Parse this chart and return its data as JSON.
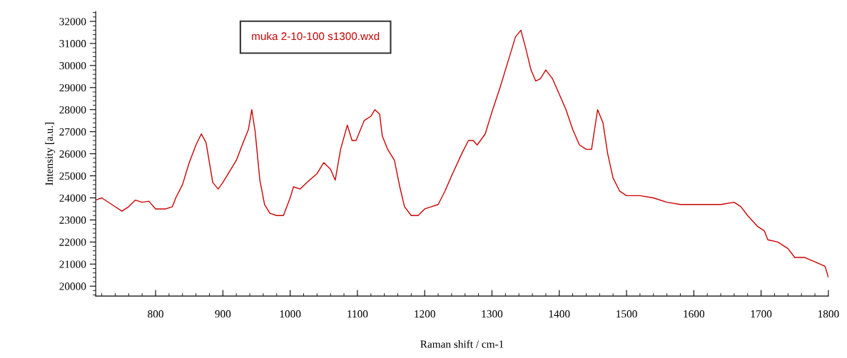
{
  "chart_data": {
    "type": "line",
    "xlabel": "Raman shift / cm-1",
    "ylabel": "Intensity [a.u.]",
    "xlim": [
      711,
      1800
    ],
    "ylim": [
      19550,
      32450
    ],
    "xticks": [
      800,
      900,
      1000,
      1100,
      1200,
      1300,
      1400,
      1500,
      1600,
      1700,
      1800,
      {
        "value": 720,
        "label": null
      },
      {
        "value": 740,
        "label": null
      },
      {
        "value": 760,
        "label": null
      },
      {
        "value": 780,
        "label": null
      },
      {
        "value": 820,
        "label": null
      },
      {
        "value": 840,
        "label": null
      },
      {
        "value": 860,
        "label": null
      },
      {
        "value": 880,
        "label": null
      },
      {
        "value": 920,
        "label": null
      },
      {
        "value": 940,
        "label": null
      },
      {
        "value": 960,
        "label": null
      },
      {
        "value": 980,
        "label": null
      },
      {
        "value": 1020,
        "label": null
      },
      {
        "value": 1040,
        "label": null
      },
      {
        "value": 1060,
        "label": null
      },
      {
        "value": 1080,
        "label": null
      },
      {
        "value": 1120,
        "label": null
      },
      {
        "value": 1140,
        "label": null
      },
      {
        "value": 1160,
        "label": null
      },
      {
        "value": 1180,
        "label": null
      },
      {
        "value": 1220,
        "label": null
      },
      {
        "value": 1240,
        "label": null
      },
      {
        "value": 1260,
        "label": null
      },
      {
        "value": 1280,
        "label": null
      },
      {
        "value": 1320,
        "label": null
      },
      {
        "value": 1340,
        "label": null
      },
      {
        "value": 1360,
        "label": null
      },
      {
        "value": 1380,
        "label": null
      },
      {
        "value": 1420,
        "label": null
      },
      {
        "value": 1440,
        "label": null
      },
      {
        "value": 1460,
        "label": null
      },
      {
        "value": 1480,
        "label": null
      },
      {
        "value": 1520,
        "label": null
      },
      {
        "value": 1540,
        "label": null
      },
      {
        "value": 1560,
        "label": null
      },
      {
        "value": 1580,
        "label": null
      },
      {
        "value": 1620,
        "label": null
      },
      {
        "value": 1640,
        "label": null
      },
      {
        "value": 1660,
        "label": null
      },
      {
        "value": 1680,
        "label": null
      },
      {
        "value": 1720,
        "label": null
      },
      {
        "value": 1740,
        "label": null
      },
      {
        "value": 1760,
        "label": null
      },
      {
        "value": 1780,
        "label": null
      }
    ],
    "yticks": [
      20000,
      21000,
      22000,
      23000,
      24000,
      25000,
      26000,
      27000,
      28000,
      29000,
      30000,
      31000,
      32000,
      {
        "value": 19600,
        "label": null
      },
      {
        "value": 19800,
        "label": null
      },
      {
        "value": 20200,
        "label": null
      },
      {
        "value": 20400,
        "label": null
      },
      {
        "value": 20600,
        "label": null
      },
      {
        "value": 20800,
        "label": null
      },
      {
        "value": 21200,
        "label": null
      },
      {
        "value": 21400,
        "label": null
      },
      {
        "value": 21600,
        "label": null
      },
      {
        "value": 21800,
        "label": null
      },
      {
        "value": 22200,
        "label": null
      },
      {
        "value": 22400,
        "label": null
      },
      {
        "value": 22600,
        "label": null
      },
      {
        "value": 22800,
        "label": null
      },
      {
        "value": 23200,
        "label": null
      },
      {
        "value": 23400,
        "label": null
      },
      {
        "value": 23600,
        "label": null
      },
      {
        "value": 23800,
        "label": null
      },
      {
        "value": 24200,
        "label": null
      },
      {
        "value": 24400,
        "label": null
      },
      {
        "value": 24600,
        "label": null
      },
      {
        "value": 24800,
        "label": null
      },
      {
        "value": 25200,
        "label": null
      },
      {
        "value": 25400,
        "label": null
      },
      {
        "value": 25600,
        "label": null
      },
      {
        "value": 25800,
        "label": null
      },
      {
        "value": 26200,
        "label": null
      },
      {
        "value": 26400,
        "label": null
      },
      {
        "value": 26600,
        "label": null
      },
      {
        "value": 26800,
        "label": null
      },
      {
        "value": 27200,
        "label": null
      },
      {
        "value": 27400,
        "label": null
      },
      {
        "value": 27600,
        "label": null
      },
      {
        "value": 27800,
        "label": null
      },
      {
        "value": 28200,
        "label": null
      },
      {
        "value": 28400,
        "label": null
      },
      {
        "value": 28600,
        "label": null
      },
      {
        "value": 28800,
        "label": null
      },
      {
        "value": 29200,
        "label": null
      },
      {
        "value": 29400,
        "label": null
      },
      {
        "value": 29600,
        "label": null
      },
      {
        "value": 29800,
        "label": null
      },
      {
        "value": 30200,
        "label": null
      },
      {
        "value": 30400,
        "label": null
      },
      {
        "value": 30600,
        "label": null
      },
      {
        "value": 30800,
        "label": null
      },
      {
        "value": 31200,
        "label": null
      },
      {
        "value": 31400,
        "label": null
      },
      {
        "value": 31600,
        "label": null
      },
      {
        "value": 31800,
        "label": null
      },
      {
        "value": 32200,
        "label": null
      },
      {
        "value": 32400,
        "label": null
      }
    ],
    "grid": false,
    "legend": "top left",
    "marker": "none",
    "line_style": "solid",
    "series": [
      {
        "name": "muka 2-10-100 s1300.wxd",
        "color": "#cc0000",
        "x": [
          711,
          720,
          735,
          750,
          760,
          770,
          780,
          790,
          800,
          815,
          825,
          830,
          840,
          850,
          860,
          868,
          875,
          885,
          893,
          900,
          910,
          920,
          930,
          938,
          943,
          948,
          955,
          962,
          970,
          980,
          990,
          1000,
          1005,
          1015,
          1025,
          1040,
          1050,
          1060,
          1067,
          1075,
          1085,
          1092,
          1098,
          1110,
          1120,
          1126,
          1133,
          1137,
          1145,
          1155,
          1163,
          1170,
          1180,
          1190,
          1200,
          1210,
          1220,
          1230,
          1240,
          1255,
          1265,
          1272,
          1278,
          1290,
          1300,
          1312,
          1322,
          1335,
          1343,
          1350,
          1358,
          1365,
          1372,
          1380,
          1390,
          1400,
          1410,
          1420,
          1430,
          1440,
          1448,
          1457,
          1465,
          1472,
          1480,
          1490,
          1500,
          1520,
          1540,
          1560,
          1580,
          1600,
          1620,
          1640,
          1660,
          1670,
          1680,
          1695,
          1705,
          1710,
          1725,
          1740,
          1750,
          1765,
          1780,
          1795,
          1800
        ],
        "values": [
          23900,
          24000,
          23700,
          23400,
          23600,
          23900,
          23800,
          23850,
          23500,
          23500,
          23600,
          24000,
          24600,
          25600,
          26400,
          26900,
          26500,
          24700,
          24400,
          24700,
          25200,
          25700,
          26500,
          27100,
          28000,
          27000,
          24800,
          23700,
          23300,
          23200,
          23200,
          24000,
          24500,
          24400,
          24700,
          25100,
          25600,
          25300,
          24800,
          26200,
          27300,
          26600,
          26600,
          27500,
          27700,
          28000,
          27800,
          26800,
          26200,
          25700,
          24500,
          23600,
          23200,
          23200,
          23500,
          23600,
          23700,
          24300,
          25000,
          26000,
          26600,
          26600,
          26400,
          26900,
          27900,
          29000,
          30000,
          31300,
          31600,
          30800,
          29800,
          29300,
          29400,
          29800,
          29400,
          28700,
          28000,
          27100,
          26400,
          26200,
          26200,
          28000,
          27400,
          26000,
          24900,
          24300,
          24100,
          24100,
          24000,
          23800,
          23700,
          23700,
          23700,
          23700,
          23800,
          23600,
          23200,
          22700,
          22500,
          22100,
          22000,
          21700,
          21300,
          21300,
          21100,
          20900,
          20400
        ]
      }
    ]
  }
}
